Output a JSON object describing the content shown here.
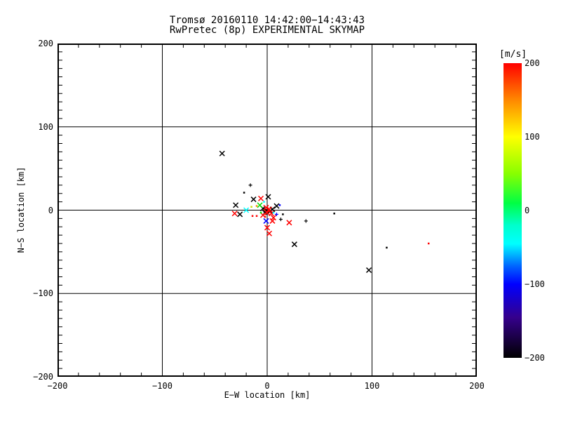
{
  "chart_data": {
    "type": "scatter",
    "title": "Tromsø 20160110 14:42:00−14:43:43",
    "subtitle": "RwPretec (8p) EXPERIMENTAL SKYMAP",
    "xlabel": "E−W location [km]",
    "ylabel": "N−S location [km]",
    "xlim": [
      -200,
      200
    ],
    "ylim": [
      -200,
      200
    ],
    "xticks": [
      -200,
      -100,
      0,
      100,
      200
    ],
    "yticks": [
      -200,
      -100,
      0,
      100,
      200
    ],
    "x_minor_step": 20,
    "y_minor_step": 10,
    "grid": true,
    "gridline_values": [
      -100,
      0,
      100
    ],
    "frame_color": "#000000",
    "background_color": "#ffffff",
    "colorbar": {
      "label": "[m/s]",
      "min": -200,
      "max": 200,
      "ticks": [
        200,
        100,
        0,
        -100,
        -200
      ],
      "stops": [
        {
          "value": 200,
          "color": "#ff0000"
        },
        {
          "value": 150,
          "color": "#ff8800"
        },
        {
          "value": 100,
          "color": "#ffff00"
        },
        {
          "value": 50,
          "color": "#88ff00"
        },
        {
          "value": 10,
          "color": "#00ff44"
        },
        {
          "value": -20,
          "color": "#00ffcc"
        },
        {
          "value": -45,
          "color": "#00ffff"
        },
        {
          "value": -75,
          "color": "#0066ff"
        },
        {
          "value": -100,
          "color": "#0000ff"
        },
        {
          "value": -145,
          "color": "#35008c"
        },
        {
          "value": -200,
          "color": "#000000"
        }
      ]
    },
    "points": [
      {
        "ew": -43,
        "ns": 68,
        "marker": "x",
        "color": "#000000"
      },
      {
        "ew": -13,
        "ns": 13,
        "marker": "x",
        "color": "#000000"
      },
      {
        "ew": 1,
        "ns": 16,
        "marker": "x",
        "color": "#000000"
      },
      {
        "ew": -30,
        "ns": 6,
        "marker": "x",
        "color": "#000000"
      },
      {
        "ew": 9,
        "ns": 5,
        "marker": "x",
        "color": "#000000"
      },
      {
        "ew": -26,
        "ns": -5,
        "marker": "x",
        "color": "#000000"
      },
      {
        "ew": -4,
        "ns": 2,
        "marker": "x",
        "color": "#000000"
      },
      {
        "ew": -1,
        "ns": 0,
        "marker": "x",
        "color": "#000000"
      },
      {
        "ew": 3,
        "ns": -1,
        "marker": "x",
        "color": "#000000"
      },
      {
        "ew": 5,
        "ns": 1,
        "marker": "x",
        "color": "#000000"
      },
      {
        "ew": -2,
        "ns": -3,
        "marker": "x",
        "color": "#000000"
      },
      {
        "ew": 26,
        "ns": -41,
        "marker": "x",
        "color": "#000000"
      },
      {
        "ew": 97,
        "ns": -72,
        "marker": "x",
        "color": "#000000"
      },
      {
        "ew": -6,
        "ns": 14,
        "marker": "x",
        "color": "#ff0000"
      },
      {
        "ew": -31,
        "ns": -4,
        "marker": "x",
        "color": "#ff0000"
      },
      {
        "ew": -1,
        "ns": 3,
        "marker": "x",
        "color": "#ff0000"
      },
      {
        "ew": 2,
        "ns": 1,
        "marker": "x",
        "color": "#ff0000"
      },
      {
        "ew": 0,
        "ns": -3,
        "marker": "x",
        "color": "#ff0000"
      },
      {
        "ew": 4,
        "ns": -4,
        "marker": "x",
        "color": "#ff0000"
      },
      {
        "ew": -4,
        "ns": -6,
        "marker": "x",
        "color": "#ff0000"
      },
      {
        "ew": 6,
        "ns": -9,
        "marker": "x",
        "color": "#ff0000"
      },
      {
        "ew": 5,
        "ns": -13,
        "marker": "x",
        "color": "#ff0000"
      },
      {
        "ew": 21,
        "ns": -15,
        "marker": "x",
        "color": "#ff0000"
      },
      {
        "ew": 0,
        "ns": -21,
        "marker": "x",
        "color": "#ff0000"
      },
      {
        "ew": 2,
        "ns": -28,
        "marker": "x",
        "color": "#ff0000"
      },
      {
        "ew": -7,
        "ns": 6,
        "marker": "x",
        "color": "#00dd00"
      },
      {
        "ew": -20,
        "ns": 0,
        "marker": "x",
        "color": "#00ffff"
      },
      {
        "ew": -1,
        "ns": -13,
        "marker": "x",
        "color": "#0000ff"
      },
      {
        "ew": -16,
        "ns": 30,
        "marker": "plus",
        "color": "#000000"
      },
      {
        "ew": -22,
        "ns": 21,
        "marker": "dot",
        "color": "#000000"
      },
      {
        "ew": 13,
        "ns": -11,
        "marker": "plus",
        "color": "#000000"
      },
      {
        "ew": 15,
        "ns": -5,
        "marker": "dot",
        "color": "#000000"
      },
      {
        "ew": 37,
        "ns": -13,
        "marker": "plus",
        "color": "#000000"
      },
      {
        "ew": 64,
        "ns": -4,
        "marker": "dot",
        "color": "#000000"
      },
      {
        "ew": 114,
        "ns": -45,
        "marker": "dot",
        "color": "#000000"
      },
      {
        "ew": -3,
        "ns": 10,
        "marker": "dot",
        "color": "#00ffff"
      },
      {
        "ew": -10,
        "ns": 5,
        "marker": "dot",
        "color": "#ff8800"
      },
      {
        "ew": -15,
        "ns": 4,
        "marker": "dot",
        "color": "#ccdd00"
      },
      {
        "ew": 12,
        "ns": 6,
        "marker": "dot",
        "color": "#0000ff"
      },
      {
        "ew": -6,
        "ns": -3,
        "marker": "dot",
        "color": "#00dd00"
      },
      {
        "ew": 6,
        "ns": -3,
        "marker": "dot",
        "color": "#00ffff"
      },
      {
        "ew": 9,
        "ns": -5,
        "marker": "plus",
        "color": "#0000ff"
      },
      {
        "ew": -14,
        "ns": -7,
        "marker": "dot",
        "color": "#ff0000"
      },
      {
        "ew": -10,
        "ns": -7,
        "marker": "dot",
        "color": "#ff0000"
      },
      {
        "ew": -2,
        "ns": -8,
        "marker": "dot",
        "color": "#ff0000"
      },
      {
        "ew": 154,
        "ns": -40,
        "marker": "dot",
        "color": "#ff0000"
      }
    ]
  }
}
